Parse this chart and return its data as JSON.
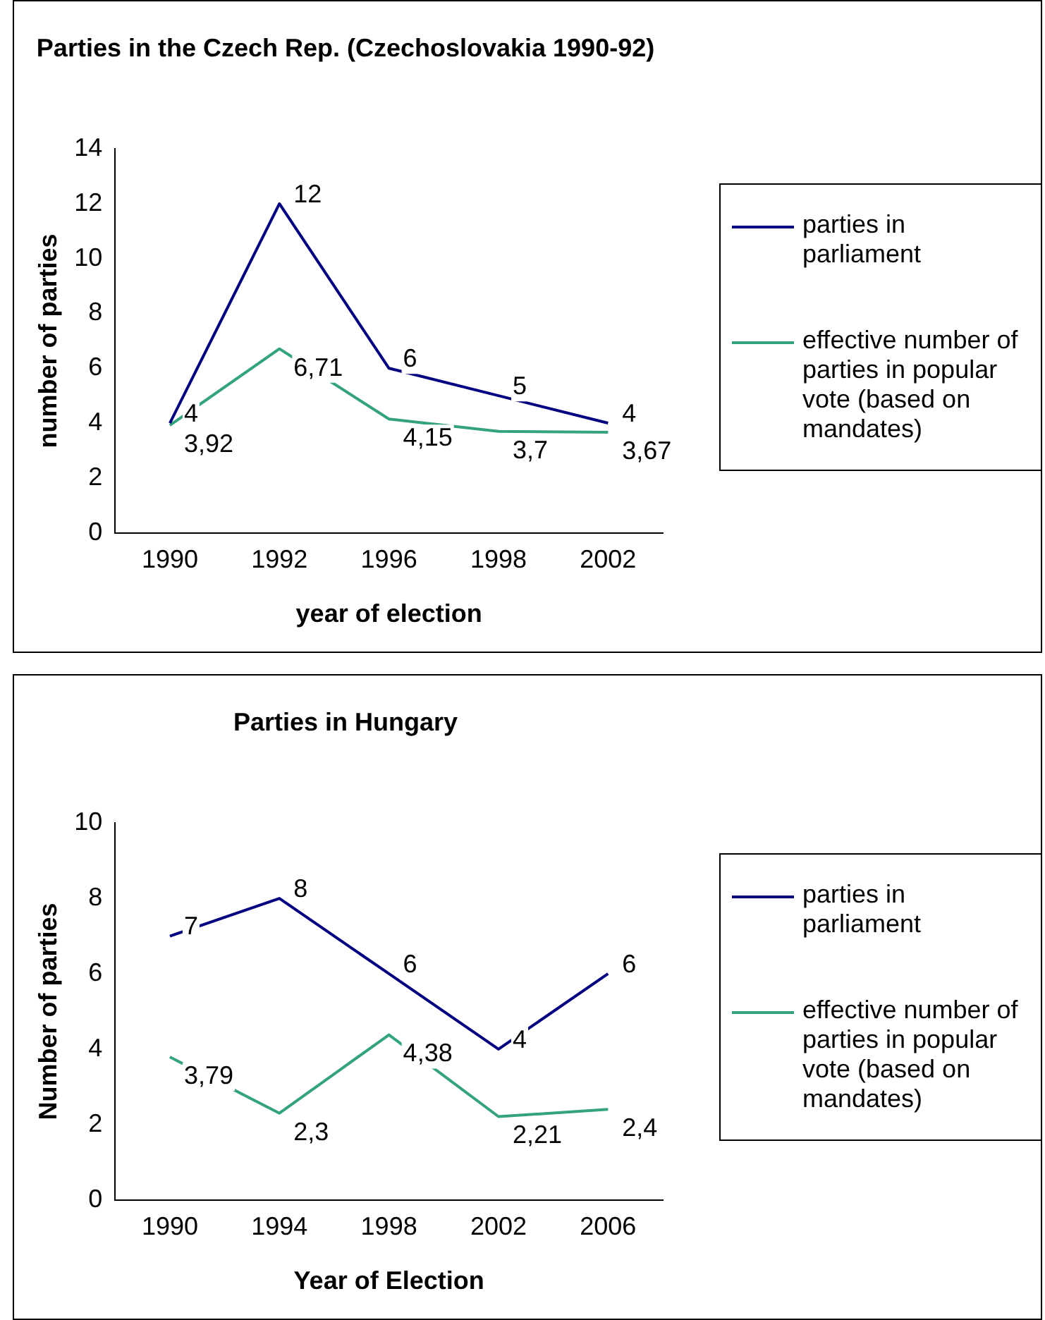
{
  "chart_data": [
    {
      "type": "line",
      "title": "Parties in the Czech Rep. (Czechoslovakia 1990-92)",
      "xlabel": "year of election",
      "ylabel": "number of parties",
      "categories": [
        "1990",
        "1992",
        "1996",
        "1998",
        "2002"
      ],
      "ylim": [
        0,
        14
      ],
      "yticks": [
        0,
        2,
        4,
        6,
        8,
        10,
        12,
        14
      ],
      "grid": false,
      "legend": "right",
      "marker": "none",
      "series": [
        {
          "name": "parties in parliament",
          "color": "#000080",
          "values": [
            4,
            12,
            6,
            5,
            4
          ],
          "value_labels": [
            "4",
            "12",
            "6",
            "5",
            "4"
          ]
        },
        {
          "name": "effective number of parties in popular vote (based on mandates)",
          "color": "#33a37c",
          "values": [
            3.92,
            6.71,
            4.15,
            3.7,
            3.67
          ],
          "value_labels": [
            "3,92",
            "6,71",
            "4,15",
            "3,7",
            "3,67"
          ]
        }
      ]
    },
    {
      "type": "line",
      "title": "Parties in Hungary",
      "xlabel": "Year of Election",
      "ylabel": "Number of parties",
      "categories": [
        "1990",
        "1994",
        "1998",
        "2002",
        "2006"
      ],
      "ylim": [
        0,
        10
      ],
      "yticks": [
        0,
        2,
        4,
        6,
        8,
        10
      ],
      "grid": false,
      "legend": "right",
      "marker": "none",
      "series": [
        {
          "name": "parties in parliament",
          "color": "#000080",
          "values": [
            7,
            8,
            6,
            4,
            6
          ],
          "value_labels": [
            "7",
            "8",
            "6",
            "4",
            "6"
          ]
        },
        {
          "name": "effective number of parties in popular vote (based on mandates)",
          "color": "#33a37c",
          "values": [
            3.79,
            2.3,
            4.38,
            2.21,
            2.4
          ],
          "value_labels": [
            "3,79",
            "2,3",
            "4,38",
            "2,21",
            "2,4"
          ]
        }
      ]
    }
  ]
}
